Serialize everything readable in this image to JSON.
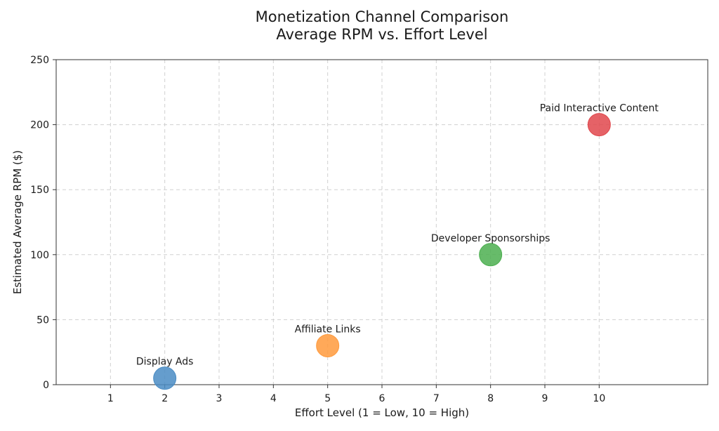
{
  "chart_data": {
    "type": "scatter",
    "title_line1": "Monetization Channel Comparison",
    "title_line2": "Average RPM vs. Effort Level",
    "xlabel": "Effort Level (1 = Low, 10 = High)",
    "ylabel": "Estimated Average RPM ($)",
    "xlim": [
      0,
      12
    ],
    "ylim": [
      0,
      250
    ],
    "xticks": [
      1,
      2,
      3,
      4,
      5,
      6,
      7,
      8,
      9,
      10
    ],
    "yticks": [
      0,
      50,
      100,
      150,
      200,
      250
    ],
    "grid": true,
    "points": [
      {
        "label": "Display Ads",
        "x": 2,
        "y": 5,
        "color": "#4a8cc4"
      },
      {
        "label": "Affiliate Links",
        "x": 5,
        "y": 30,
        "color": "#ff9a3c"
      },
      {
        "label": "Developer Sponsorships",
        "x": 8,
        "y": 100,
        "color": "#4caf50"
      },
      {
        "label": "Paid Interactive Content",
        "x": 10,
        "y": 200,
        "color": "#e0474c"
      }
    ]
  }
}
